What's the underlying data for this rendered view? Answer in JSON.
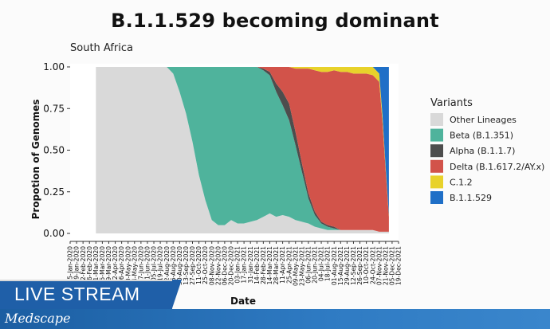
{
  "slide": {
    "title": "B.1.1.529 becoming dominant"
  },
  "overlay": {
    "live_label": "LIVE STREAM",
    "brand": "Medscape",
    "colors": {
      "live_bg": "#1f5fa8",
      "brand_bg": "#2a72ba"
    }
  },
  "chart_data": {
    "type": "area",
    "stacked": true,
    "normalized": true,
    "subtitle": "South Africa",
    "xlabel": "Date",
    "ylabel": "Propotion of Genomes",
    "ylim": [
      0,
      1
    ],
    "yticks": [
      "0.00",
      "0.25",
      "0.50",
      "0.75",
      "1.00"
    ],
    "legend_position": "right",
    "legend_title": "Variants",
    "x_tick_labels": [
      "05-Jan-2020",
      "19-Jan-2020",
      "02-Feb-2020",
      "16-Feb-2020",
      "01-Mar-2020",
      "15-Mar-2020",
      "29-Mar-2020",
      "12-Apr-2020",
      "26-Apr-2020",
      "10-May-2020",
      "24-May-2020",
      "07-Jun-2020",
      "21-Jun-2020",
      "05-Jul-2020",
      "19-Jul-2020",
      "02-Aug-2020",
      "16-Aug-2020",
      "30-Aug-2020",
      "13-Sep-2020",
      "27-Sep-2020",
      "11-Oct-2020",
      "25-Oct-2020",
      "08-Nov-2020",
      "22-Nov-2020",
      "06-Dec-2020",
      "20-Dec-2020",
      "03-Jan-2021",
      "17-Jan-2021",
      "31-Jan-2021",
      "14-Feb-2021",
      "28-Feb-2021",
      "14-Mar-2021",
      "28-Mar-2021",
      "11-Apr-2021",
      "25-Apr-2021",
      "09-May-2021",
      "23-May-2021",
      "06-Jun-2021",
      "20-Jun-2021",
      "04-Jul-2021",
      "18-Jul-2021",
      "01-Aug-2021",
      "15-Aug-2021",
      "29-Aug-2021",
      "12-Sep-2021",
      "26-Sep-2021",
      "10-Oct-2021",
      "24-Oct-2021",
      "07-Nov-2021",
      "21-Nov-2021",
      "05-Dec-2021",
      "19-Dec-2021"
    ],
    "x": [
      "2020-03-01",
      "2020-08-02",
      "2020-08-16",
      "2020-08-30",
      "2020-09-13",
      "2020-09-27",
      "2020-10-11",
      "2020-10-25",
      "2020-11-08",
      "2020-11-22",
      "2020-12-06",
      "2020-12-20",
      "2021-01-03",
      "2021-01-17",
      "2021-01-31",
      "2021-02-14",
      "2021-02-28",
      "2021-03-14",
      "2021-03-28",
      "2021-04-11",
      "2021-04-25",
      "2021-05-09",
      "2021-05-23",
      "2021-06-06",
      "2021-06-20",
      "2021-07-04",
      "2021-07-18",
      "2021-08-01",
      "2021-08-15",
      "2021-08-29",
      "2021-09-12",
      "2021-09-26",
      "2021-10-10",
      "2021-10-24",
      "2021-11-07",
      "2021-11-14",
      "2021-11-21",
      "2021-11-28"
    ],
    "series": [
      {
        "name": "Other Lineages",
        "color": "#d9d9d9",
        "values": [
          1,
          1,
          0.96,
          0.85,
          0.72,
          0.55,
          0.35,
          0.2,
          0.08,
          0.05,
          0.05,
          0.08,
          0.06,
          0.06,
          0.07,
          0.08,
          0.1,
          0.12,
          0.1,
          0.11,
          0.1,
          0.08,
          0.07,
          0.06,
          0.04,
          0.03,
          0.02,
          0.02,
          0.02,
          0.02,
          0.02,
          0.02,
          0.02,
          0.02,
          0.01,
          0.01,
          0.01,
          0.01
        ]
      },
      {
        "name": "Beta (B.1.351)",
        "color": "#4fb39c",
        "values": [
          0,
          0,
          0.04,
          0.15,
          0.28,
          0.45,
          0.65,
          0.8,
          0.92,
          0.95,
          0.95,
          0.92,
          0.94,
          0.94,
          0.93,
          0.92,
          0.88,
          0.83,
          0.75,
          0.66,
          0.58,
          0.45,
          0.3,
          0.15,
          0.07,
          0.03,
          0.02,
          0.01,
          0,
          0,
          0,
          0,
          0,
          0,
          0,
          0,
          0,
          0
        ]
      },
      {
        "name": "Alpha (B.1.1.7)",
        "color": "#4d4d4d",
        "values": [
          0,
          0,
          0,
          0,
          0,
          0,
          0,
          0,
          0,
          0,
          0,
          0,
          0,
          0,
          0,
          0,
          0.01,
          0.02,
          0.05,
          0.08,
          0.1,
          0.08,
          0.05,
          0.03,
          0.02,
          0.01,
          0.01,
          0.01,
          0,
          0,
          0,
          0,
          0,
          0,
          0,
          0,
          0,
          0
        ]
      },
      {
        "name": "Delta (B.1.617.2/AY.x)",
        "color": "#d2534a",
        "values": [
          0,
          0,
          0,
          0,
          0,
          0,
          0,
          0,
          0,
          0,
          0,
          0,
          0,
          0,
          0,
          0,
          0.01,
          0.03,
          0.1,
          0.15,
          0.22,
          0.38,
          0.57,
          0.75,
          0.85,
          0.9,
          0.92,
          0.94,
          0.95,
          0.95,
          0.94,
          0.94,
          0.94,
          0.93,
          0.9,
          0.66,
          0.37,
          0.09
        ]
      },
      {
        "name": "C.1.2",
        "color": "#e8d22b",
        "values": [
          0,
          0,
          0,
          0,
          0,
          0,
          0,
          0,
          0,
          0,
          0,
          0,
          0,
          0,
          0,
          0,
          0,
          0,
          0,
          0,
          0,
          0.01,
          0.01,
          0.01,
          0.02,
          0.03,
          0.03,
          0.02,
          0.03,
          0.03,
          0.04,
          0.04,
          0.04,
          0.05,
          0.05,
          0.04,
          0.02,
          0.01
        ]
      },
      {
        "name": "B.1.1.529",
        "color": "#1f6fc7",
        "values": [
          0,
          0,
          0,
          0,
          0,
          0,
          0,
          0,
          0,
          0,
          0,
          0,
          0,
          0,
          0,
          0,
          0,
          0,
          0,
          0,
          0,
          0,
          0,
          0,
          0,
          0,
          0,
          0,
          0,
          0,
          0,
          0,
          0,
          0,
          0.04,
          0.29,
          0.6,
          0.89
        ]
      }
    ],
    "background_color": "#ffffff"
  }
}
